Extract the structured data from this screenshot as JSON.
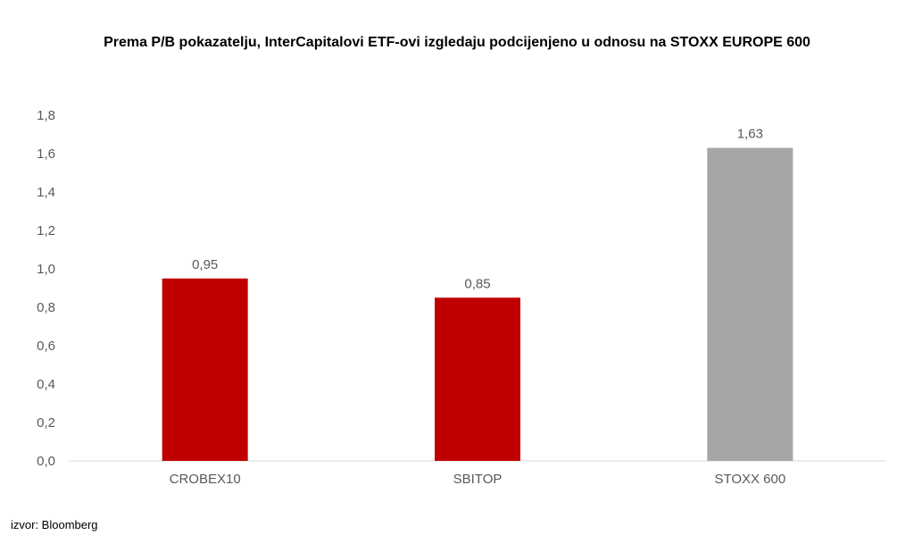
{
  "chart_data": {
    "type": "bar",
    "title": "Prema P/B pokazatelju, InterCapitalovi ETF-ovi izgledaju podcijenjeno u odnosu na STOXX EUROPE 600",
    "xlabel": "",
    "ylabel": "",
    "categories": [
      "CROBEX10",
      "SBITOP",
      "STOXX 600"
    ],
    "values": [
      0.95,
      0.85,
      1.63
    ],
    "value_labels": [
      "0,95",
      "0,85",
      "1,63"
    ],
    "bar_colors": [
      "#c00000",
      "#c00000",
      "#a6a6a6"
    ],
    "ylim": [
      0,
      1.8
    ],
    "y_ticks": [
      0,
      0.2,
      0.4,
      0.6,
      0.8,
      1.0,
      1.2,
      1.4,
      1.6,
      1.8
    ],
    "y_tick_labels": [
      "0,0",
      "0,2",
      "0,4",
      "0,6",
      "0,8",
      "1,0",
      "1,2",
      "1,4",
      "1,6",
      "1,8"
    ],
    "grid": false,
    "legend": "none"
  },
  "source": "izvor: Bloomberg",
  "colors": {
    "text": "#595959",
    "axis": "#d9d9d9"
  }
}
